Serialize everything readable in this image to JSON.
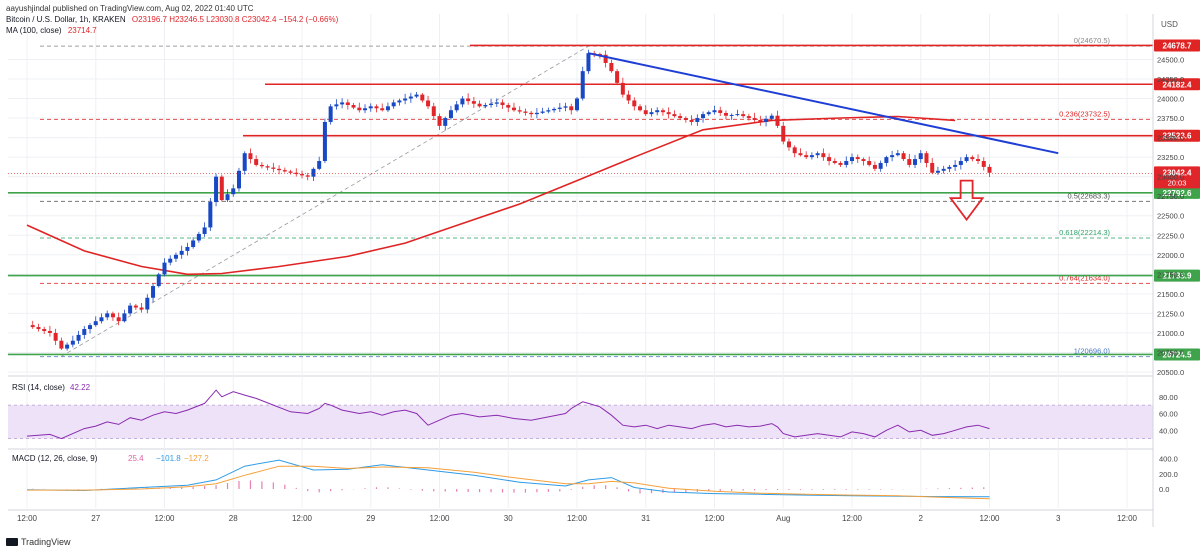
{
  "header": {
    "publisher_line": "aayushjindal published on TradingView.com, Aug 02, 2022 01:40 UTC",
    "symbol_line_prefix": "Bitcoin / U.S. Dollar, 1h, KRAKEN",
    "ohlc_line": "O23196.7  H23246.5  L23030.8  C23042.4  −154.2 (−0.66%)",
    "ma_label": "MA (100, close)",
    "ma_value": "23714.7"
  },
  "footer": {
    "brand": "TradingView"
  },
  "currency_badge": "USD",
  "colors": {
    "bull": "#1848c4",
    "bear": "#e0252b",
    "ma": "#e02424",
    "support": "#3ea34a",
    "resistance": "#e02424",
    "trendline": "#1f3fd4",
    "rsi": "#8a2ab0",
    "macd": "#2e9be6",
    "signal": "#f5a03a",
    "hist": "#e060a0"
  },
  "chart_data": [
    {
      "type": "candlestick",
      "title": "Bitcoin / U.S. Dollar, 1h, KRAKEN",
      "ylim": [
        20500,
        24800
      ],
      "y_ticks": [
        20500,
        20750,
        21000,
        21250,
        21500,
        21750,
        22000,
        22250,
        22500,
        22750,
        23000,
        23250,
        23500,
        23750,
        24000,
        24250,
        24500
      ],
      "x_ticks": [
        {
          "t": 0,
          "label": "12:00"
        },
        {
          "t": 12,
          "label": "27"
        },
        {
          "t": 24,
          "label": "12:00"
        },
        {
          "t": 36,
          "label": "28"
        },
        {
          "t": 48,
          "label": "12:00"
        },
        {
          "t": 60,
          "label": "29"
        },
        {
          "t": 72,
          "label": "12:00"
        },
        {
          "t": 84,
          "label": "30"
        },
        {
          "t": 96,
          "label": "12:00"
        },
        {
          "t": 108,
          "label": "31"
        },
        {
          "t": 120,
          "label": "12:00"
        },
        {
          "t": 132,
          "label": "Aug"
        },
        {
          "t": 144,
          "label": "12:00"
        },
        {
          "t": 156,
          "label": "2"
        },
        {
          "t": 168,
          "label": "12:00"
        },
        {
          "t": 180,
          "label": "3"
        },
        {
          "t": 192,
          "label": "12:00"
        }
      ],
      "close_path": [
        [
          0,
          21100
        ],
        [
          4,
          21000
        ],
        [
          6,
          20800
        ],
        [
          8,
          20900
        ],
        [
          10,
          21050
        ],
        [
          12,
          21150
        ],
        [
          14,
          21250
        ],
        [
          16,
          21150
        ],
        [
          18,
          21350
        ],
        [
          20,
          21300
        ],
        [
          22,
          21600
        ],
        [
          24,
          21900
        ],
        [
          26,
          22000
        ],
        [
          28,
          22100
        ],
        [
          31,
          22350
        ],
        [
          33,
          23000
        ],
        [
          34,
          22700
        ],
        [
          36,
          22850
        ],
        [
          38,
          23300
        ],
        [
          40,
          23150
        ],
        [
          43,
          23100
        ],
        [
          46,
          23050
        ],
        [
          49,
          23000
        ],
        [
          51,
          23200
        ],
        [
          52,
          23700
        ],
        [
          53,
          23900
        ],
        [
          55,
          23950
        ],
        [
          58,
          23850
        ],
        [
          60,
          23900
        ],
        [
          62,
          23850
        ],
        [
          64,
          23950
        ],
        [
          66,
          24000
        ],
        [
          68,
          24050
        ],
        [
          70,
          23900
        ],
        [
          72,
          23650
        ],
        [
          74,
          23850
        ],
        [
          76,
          24000
        ],
        [
          79,
          23900
        ],
        [
          82,
          23950
        ],
        [
          85,
          23850
        ],
        [
          88,
          23800
        ],
        [
          91,
          23850
        ],
        [
          94,
          23900
        ],
        [
          95,
          23850
        ],
        [
          96,
          24000
        ],
        [
          97,
          24350
        ],
        [
          98,
          24580
        ],
        [
          100,
          24560
        ],
        [
          102,
          24350
        ],
        [
          104,
          24050
        ],
        [
          106,
          23900
        ],
        [
          108,
          23800
        ],
        [
          110,
          23850
        ],
        [
          112,
          23800
        ],
        [
          114,
          23750
        ],
        [
          116,
          23700
        ],
        [
          118,
          23800
        ],
        [
          120,
          23850
        ],
        [
          122,
          23780
        ],
        [
          124,
          23800
        ],
        [
          126,
          23750
        ],
        [
          128,
          23700
        ],
        [
          130,
          23780
        ],
        [
          131,
          23650
        ],
        [
          132,
          23450
        ],
        [
          134,
          23300
        ],
        [
          136,
          23250
        ],
        [
          138,
          23300
        ],
        [
          140,
          23200
        ],
        [
          142,
          23150
        ],
        [
          144,
          23250
        ],
        [
          146,
          23200
        ],
        [
          148,
          23100
        ],
        [
          150,
          23250
        ],
        [
          152,
          23300
        ],
        [
          154,
          23150
        ],
        [
          156,
          23300
        ],
        [
          158,
          23050
        ],
        [
          160,
          23100
        ],
        [
          162,
          23150
        ],
        [
          164,
          23250
        ],
        [
          166,
          23200
        ],
        [
          168,
          23050
        ]
      ],
      "moving_average": {
        "name": "MA (100, close)",
        "points": [
          [
            0,
            22380
          ],
          [
            10,
            22050
          ],
          [
            20,
            21850
          ],
          [
            28,
            21750
          ],
          [
            34,
            21760
          ],
          [
            44,
            21850
          ],
          [
            56,
            21980
          ],
          [
            66,
            22150
          ],
          [
            76,
            22400
          ],
          [
            86,
            22650
          ],
          [
            96,
            22950
          ],
          [
            106,
            23250
          ],
          [
            118,
            23600
          ],
          [
            130,
            23720
          ],
          [
            142,
            23750
          ],
          [
            152,
            23770
          ],
          [
            162,
            23720
          ]
        ]
      },
      "horizontal_levels": [
        {
          "kind": "resistance",
          "value": 24678.7,
          "label": "24678.7"
        },
        {
          "kind": "resistance",
          "value": 24182.4,
          "label": "24182.4"
        },
        {
          "kind": "resistance",
          "value": 23523.6,
          "label": "23523.6"
        },
        {
          "kind": "support",
          "value": 22792.6,
          "label": "22792.6"
        },
        {
          "kind": "support",
          "value": 21733.9,
          "label": "21733.9"
        },
        {
          "kind": "support",
          "value": 20724.5,
          "label": "20724.5"
        }
      ],
      "last_price": {
        "value": 23042.4,
        "label": "23042.4",
        "countdown": "20:03"
      },
      "fibonacci": [
        {
          "ratio": "0",
          "value": 24670.5,
          "label": "0(24670.5)",
          "color": "#888888"
        },
        {
          "ratio": "0.236",
          "value": 23732.5,
          "label": "0.236(23732.5)",
          "color": "#e02424"
        },
        {
          "ratio": "0.5",
          "value": 22683.3,
          "label": "0.5(22683.3)",
          "color": "#555555"
        },
        {
          "ratio": "0.618",
          "value": 22214.3,
          "label": "0.618(22214.3)",
          "color": "#2fa36a"
        },
        {
          "ratio": "0.764",
          "value": 21634.0,
          "label": "0.764(21634.0)",
          "color": "#e02424"
        },
        {
          "ratio": "1",
          "value": 20696.0,
          "label": "1(20696.0)",
          "color": "#4a78c8"
        }
      ],
      "trendline": {
        "from": [
          98,
          24580
        ],
        "to": [
          180,
          23300
        ]
      },
      "fib_anchor_line": {
        "from": [
          6,
          20700
        ],
        "to": [
          98,
          24670
        ]
      },
      "down_arrow": {
        "t": 164,
        "from": 22950,
        "to": 22450
      }
    },
    {
      "type": "line",
      "title": "RSI (14, close)",
      "value_label": "42.22",
      "ylim": [
        20,
        100
      ],
      "y_ticks": [
        40,
        60,
        80
      ],
      "band": [
        30,
        70
      ],
      "series": [
        {
          "name": "RSI",
          "values_path": [
            [
              0,
              33
            ],
            [
              4,
              35
            ],
            [
              6,
              30
            ],
            [
              8,
              36
            ],
            [
              10,
              42
            ],
            [
              12,
              45
            ],
            [
              14,
              50
            ],
            [
              16,
              47
            ],
            [
              18,
              55
            ],
            [
              20,
              52
            ],
            [
              22,
              58
            ],
            [
              24,
              62
            ],
            [
              26,
              60
            ],
            [
              28,
              64
            ],
            [
              31,
              72
            ],
            [
              33,
              88
            ],
            [
              34,
              80
            ],
            [
              36,
              86
            ],
            [
              38,
              82
            ],
            [
              40,
              78
            ],
            [
              43,
              70
            ],
            [
              46,
              62
            ],
            [
              49,
              60
            ],
            [
              51,
              66
            ],
            [
              52,
              72
            ],
            [
              53,
              70
            ],
            [
              55,
              64
            ],
            [
              58,
              60
            ],
            [
              60,
              62
            ],
            [
              62,
              58
            ],
            [
              64,
              62
            ],
            [
              66,
              64
            ],
            [
              68,
              60
            ],
            [
              70,
              46
            ],
            [
              72,
              52
            ],
            [
              74,
              58
            ],
            [
              76,
              60
            ],
            [
              79,
              56
            ],
            [
              82,
              58
            ],
            [
              85,
              54
            ],
            [
              88,
              52
            ],
            [
              91,
              56
            ],
            [
              94,
              60
            ],
            [
              95,
              66
            ],
            [
              96,
              70
            ],
            [
              97,
              74
            ],
            [
              98,
              72
            ],
            [
              100,
              68
            ],
            [
              102,
              58
            ],
            [
              104,
              46
            ],
            [
              106,
              44
            ],
            [
              108,
              46
            ],
            [
              110,
              42
            ],
            [
              112,
              46
            ],
            [
              114,
              44
            ],
            [
              116,
              42
            ],
            [
              118,
              46
            ],
            [
              120,
              48
            ],
            [
              122,
              44
            ],
            [
              124,
              46
            ],
            [
              126,
              44
            ],
            [
              128,
              45
            ],
            [
              130,
              48
            ],
            [
              131,
              44
            ],
            [
              132,
              36
            ],
            [
              134,
              32
            ],
            [
              136,
              34
            ],
            [
              138,
              36
            ],
            [
              140,
              34
            ],
            [
              142,
              32
            ],
            [
              144,
              38
            ],
            [
              146,
              36
            ],
            [
              148,
              32
            ],
            [
              150,
              40
            ],
            [
              152,
              46
            ],
            [
              154,
              38
            ],
            [
              156,
              40
            ],
            [
              158,
              34
            ],
            [
              160,
              36
            ],
            [
              162,
              40
            ],
            [
              164,
              44
            ],
            [
              166,
              46
            ],
            [
              168,
              42
            ]
          ]
        }
      ]
    },
    {
      "type": "line",
      "title": "MACD (12, 26, close, 9)",
      "values_shown": [
        "25.4",
        "−101.8",
        "−127.2"
      ],
      "ylim": [
        -250,
        500
      ],
      "y_ticks": [
        {
          "v": 400,
          "label": "400.0"
        },
        {
          "v": 200,
          "label": "200.0"
        },
        {
          "v": 0,
          "label": "0.0"
        }
      ],
      "series": [
        {
          "name": "MACD",
          "values_path": [
            [
              0,
              -10
            ],
            [
              10,
              -20
            ],
            [
              20,
              20
            ],
            [
              28,
              50
            ],
            [
              33,
              120
            ],
            [
              38,
              300
            ],
            [
              44,
              380
            ],
            [
              50,
              250
            ],
            [
              56,
              260
            ],
            [
              62,
              320
            ],
            [
              70,
              250
            ],
            [
              78,
              180
            ],
            [
              86,
              90
            ],
            [
              94,
              40
            ],
            [
              98,
              120
            ],
            [
              102,
              150
            ],
            [
              106,
              20
            ],
            [
              112,
              -40
            ],
            [
              120,
              -60
            ],
            [
              128,
              -70
            ],
            [
              136,
              -80
            ],
            [
              144,
              -90
            ],
            [
              152,
              -95
            ],
            [
              160,
              -100
            ],
            [
              168,
              -101.8
            ]
          ]
        },
        {
          "name": "Signal",
          "values_path": [
            [
              0,
              -15
            ],
            [
              10,
              -15
            ],
            [
              20,
              0
            ],
            [
              28,
              30
            ],
            [
              33,
              70
            ],
            [
              38,
              180
            ],
            [
              44,
              300
            ],
            [
              50,
              300
            ],
            [
              56,
              270
            ],
            [
              62,
              290
            ],
            [
              70,
              280
            ],
            [
              78,
              220
            ],
            [
              86,
              140
            ],
            [
              94,
              70
            ],
            [
              98,
              70
            ],
            [
              102,
              100
            ],
            [
              106,
              80
            ],
            [
              112,
              10
            ],
            [
              120,
              -30
            ],
            [
              128,
              -55
            ],
            [
              136,
              -70
            ],
            [
              144,
              -80
            ],
            [
              152,
              -90
            ],
            [
              160,
              -110
            ],
            [
              168,
              -127.2
            ]
          ]
        }
      ]
    }
  ]
}
